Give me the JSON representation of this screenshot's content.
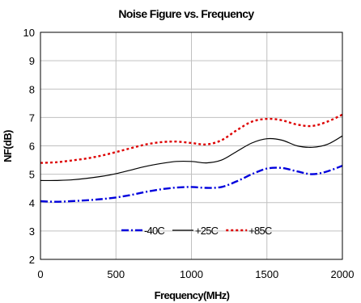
{
  "chart_data": {
    "type": "line",
    "title": "Noise Figure vs. Frequency",
    "xlabel": "Frequency(MHz)",
    "ylabel": "NF(dB)",
    "xlim": [
      0,
      2000
    ],
    "ylim": [
      2,
      10
    ],
    "xticks": [
      0,
      500,
      1000,
      1500,
      2000
    ],
    "yticks": [
      2,
      3,
      4,
      5,
      6,
      7,
      8,
      9,
      10
    ],
    "grid": true,
    "legend_position": "bottom-center",
    "series": [
      {
        "name": "-40C",
        "color": "#0000dd",
        "style": "dash-dot",
        "x": [
          0,
          100,
          200,
          300,
          400,
          500,
          600,
          700,
          800,
          900,
          1000,
          1100,
          1200,
          1300,
          1400,
          1500,
          1600,
          1700,
          1800,
          1900,
          2000
        ],
        "y": [
          4.05,
          4.03,
          4.05,
          4.08,
          4.12,
          4.18,
          4.27,
          4.38,
          4.47,
          4.53,
          4.55,
          4.52,
          4.55,
          4.75,
          5.0,
          5.2,
          5.22,
          5.1,
          5.0,
          5.1,
          5.3
        ]
      },
      {
        "name": "+25C",
        "color": "#000000",
        "style": "solid",
        "x": [
          0,
          100,
          200,
          300,
          400,
          500,
          600,
          700,
          800,
          900,
          1000,
          1100,
          1200,
          1300,
          1400,
          1500,
          1600,
          1700,
          1800,
          1900,
          2000
        ],
        "y": [
          4.78,
          4.78,
          4.8,
          4.85,
          4.92,
          5.02,
          5.15,
          5.28,
          5.38,
          5.45,
          5.45,
          5.4,
          5.5,
          5.8,
          6.1,
          6.25,
          6.2,
          6.0,
          5.95,
          6.05,
          6.35
        ]
      },
      {
        "name": "+85C",
        "color": "#dd0000",
        "style": "dotted",
        "x": [
          0,
          100,
          200,
          300,
          400,
          500,
          600,
          700,
          800,
          900,
          1000,
          1100,
          1200,
          1300,
          1400,
          1500,
          1600,
          1700,
          1800,
          1900,
          2000
        ],
        "y": [
          5.4,
          5.42,
          5.48,
          5.55,
          5.65,
          5.78,
          5.92,
          6.05,
          6.13,
          6.15,
          6.1,
          6.05,
          6.2,
          6.55,
          6.85,
          6.95,
          6.9,
          6.75,
          6.7,
          6.85,
          7.1
        ]
      }
    ]
  }
}
